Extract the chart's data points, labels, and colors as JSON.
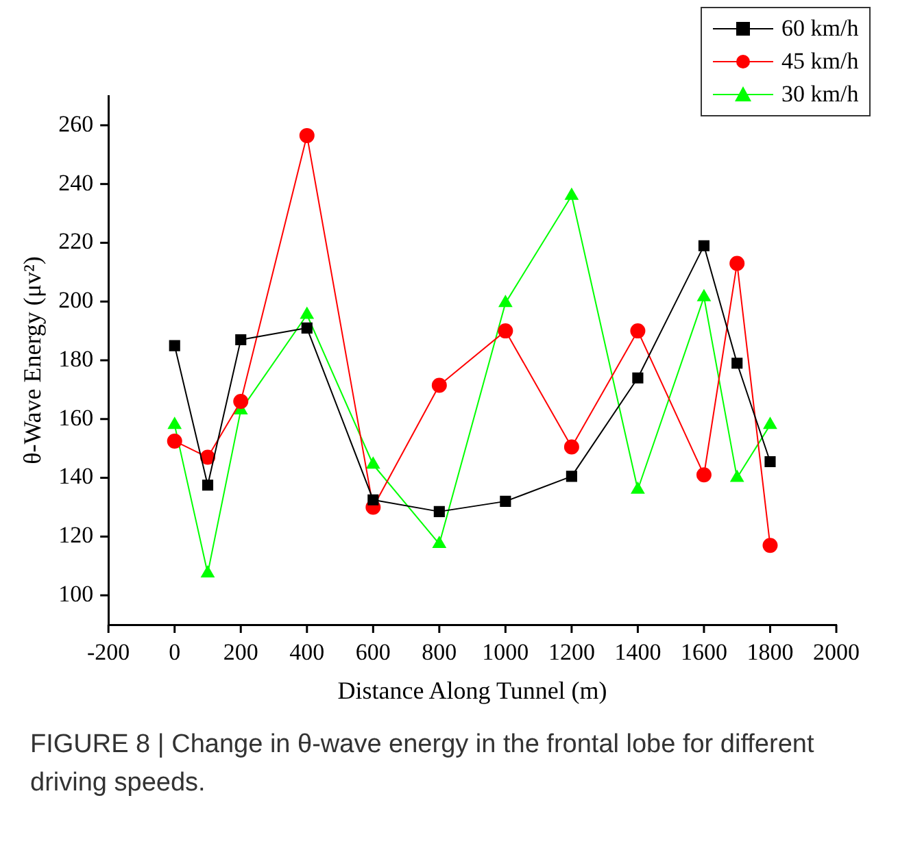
{
  "chart_data": {
    "type": "line",
    "xlabel": "Distance Along Tunnel (m)",
    "ylabel": "θ-Wave Energy (μv²)",
    "x": [
      0,
      100,
      200,
      400,
      600,
      800,
      1000,
      1200,
      1400,
      1600,
      1700,
      1800
    ],
    "series": [
      {
        "name": "60 km/h",
        "color": "#000000",
        "marker": "square",
        "values": [
          185,
          137.5,
          187,
          191,
          132.5,
          128.5,
          132,
          140.5,
          174,
          219,
          179,
          145.5
        ]
      },
      {
        "name": "45 km/h",
        "color": "#ff0000",
        "marker": "circle",
        "values": [
          152.5,
          147,
          166,
          256.5,
          130,
          171.5,
          190,
          150.5,
          190,
          141,
          213,
          117
        ]
      },
      {
        "name": "30 km/h",
        "color": "#00ff00",
        "marker": "triangle",
        "values": [
          158,
          107.5,
          163,
          195.5,
          144.5,
          117.5,
          199.5,
          236,
          136,
          201.5,
          140,
          158
        ]
      }
    ],
    "xlim": [
      -200,
      2000
    ],
    "xticks": [
      -200,
      0,
      200,
      400,
      600,
      800,
      1000,
      1200,
      1400,
      1600,
      1800,
      2000
    ],
    "ylim": [
      90,
      270
    ],
    "yticks": [
      100,
      120,
      140,
      160,
      180,
      200,
      220,
      240,
      260
    ],
    "grid": false,
    "legend": "top right",
    "annotations": [
      "FIGURE 8 | Change in θ-wave energy in the frontal lobe for different driving speeds."
    ]
  }
}
